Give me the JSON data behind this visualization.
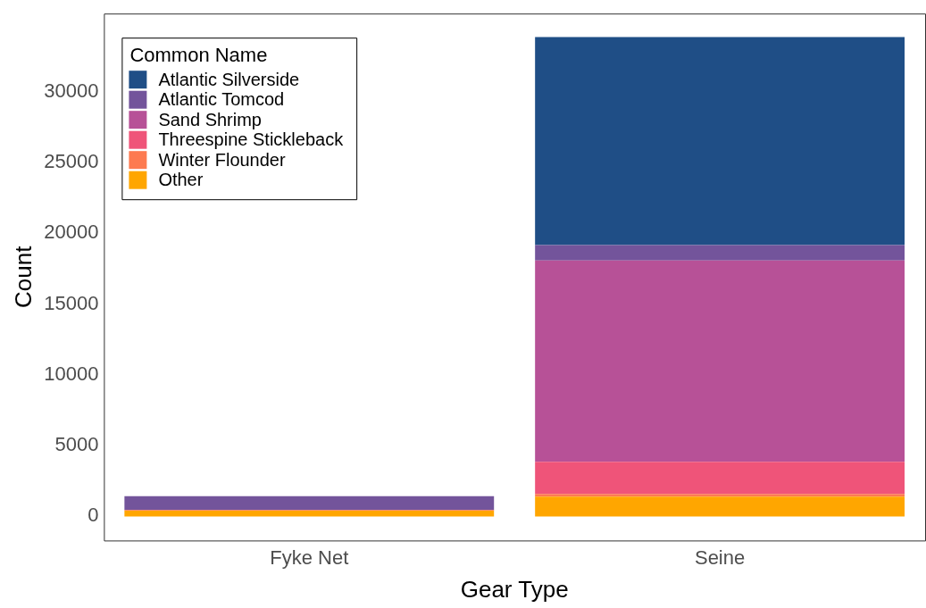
{
  "chart_data": {
    "type": "bar",
    "stacked": true,
    "xlabel": "Gear Type",
    "ylabel": "Count",
    "legend_title": "Common Name",
    "legend": "top left",
    "grid": false,
    "categories": [
      "Fyke Net",
      "Seine"
    ],
    "ylim": [
      -1700,
      35500
    ],
    "yticks": [
      0,
      5000,
      10000,
      15000,
      20000,
      25000,
      30000
    ],
    "series": [
      {
        "name": "Other",
        "color": "#ffa600",
        "values": [
          400,
          1400
        ]
      },
      {
        "name": "Winter Flounder",
        "color": "#fd7a50",
        "values": [
          50,
          180
        ]
      },
      {
        "name": "Threespine Stickleback",
        "color": "#ef5479",
        "values": [
          0,
          2270
        ]
      },
      {
        "name": "Sand Shrimp",
        "color": "#b75197",
        "values": [
          0,
          14220
        ]
      },
      {
        "name": "Atlantic Tomcod",
        "color": "#73549b",
        "values": [
          980,
          1090
        ]
      },
      {
        "name": "Atlantic Silverside",
        "color": "#1f4e86",
        "values": [
          0,
          14690
        ]
      }
    ]
  }
}
